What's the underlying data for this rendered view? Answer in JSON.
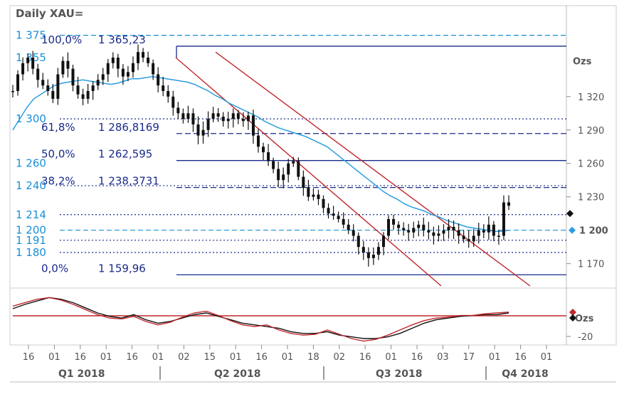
{
  "title": "Daily XAU=",
  "chart_data": {
    "type": "line",
    "symbol": "XAU=",
    "ylim": [
      1150,
      1385
    ],
    "price_ticks": [
      "1 320",
      "1 290",
      "1 260",
      "1 230",
      "1 170"
    ],
    "price_unit": "Ozs",
    "last_price_label": "1 200",
    "levels": [
      {
        "label": "1 375",
        "value": 1375,
        "style": "dashed",
        "color": "#1a8fd6"
      },
      {
        "label": "1 355",
        "value": 1355,
        "style": "none",
        "color": "#1a8fd6"
      },
      {
        "label": "1 300",
        "value": 1300,
        "style": "dotted",
        "color": "#1a2a8a"
      },
      {
        "label": "1 260",
        "value": 1260,
        "style": "none",
        "color": "#1a8fd6"
      },
      {
        "label": "1 240",
        "value": 1240,
        "style": "dotted",
        "color": "#1a2a8a"
      },
      {
        "label": "1 214",
        "value": 1214,
        "style": "dotted",
        "color": "#1a2a8a"
      },
      {
        "label": "1 200",
        "value": 1200,
        "style": "dashed",
        "color": "#1a8fd6"
      },
      {
        "label": "1 191",
        "value": 1191,
        "style": "dotted",
        "color": "#1a2a8a"
      },
      {
        "label": "1 180",
        "value": 1180,
        "style": "dotted",
        "color": "#1a2a8a"
      }
    ],
    "fibonacci": [
      {
        "pct": "100,0%",
        "value_label": "1 365,23",
        "value": 1365.23,
        "style": "solid"
      },
      {
        "pct": "61,8%",
        "value_label": "1 286,8169",
        "value": 1286.8169,
        "style": "dashed"
      },
      {
        "pct": "50,0%",
        "value_label": "1 262,595",
        "value": 1262.595,
        "style": "solid"
      },
      {
        "pct": "38,2%",
        "value_label": "1 238,3731",
        "value": 1238.3731,
        "style": "dashed"
      },
      {
        "pct": "0,0%",
        "value_label": "1 159,96",
        "value": 1159.96,
        "style": "solid"
      }
    ],
    "price_series": [
      1325,
      1340,
      1350,
      1355,
      1345,
      1335,
      1330,
      1325,
      1318,
      1340,
      1352,
      1345,
      1330,
      1322,
      1318,
      1325,
      1330,
      1335,
      1340,
      1350,
      1355,
      1345,
      1338,
      1342,
      1350,
      1360,
      1355,
      1350,
      1340,
      1330,
      1325,
      1320,
      1310,
      1305,
      1300,
      1305,
      1295,
      1285,
      1290,
      1300,
      1305,
      1302,
      1298,
      1300,
      1305,
      1300,
      1298,
      1303,
      1285,
      1275,
      1270,
      1262,
      1255,
      1245,
      1250,
      1260,
      1262,
      1248,
      1238,
      1230,
      1232,
      1228,
      1220,
      1215,
      1213,
      1210,
      1205,
      1200,
      1195,
      1185,
      1180,
      1175,
      1178,
      1185,
      1195,
      1210,
      1205,
      1202,
      1200,
      1198,
      1202,
      1205,
      1200,
      1198,
      1195,
      1197,
      1200,
      1203,
      1200,
      1195,
      1192,
      1190,
      1195,
      1200,
      1198,
      1205,
      1195,
      1195,
      1225,
      1222
    ],
    "ma_series": [
      1290,
      1300,
      1310,
      1318,
      1322,
      1326,
      1330,
      1332,
      1333,
      1334,
      1335,
      1334,
      1333,
      1332,
      1331,
      1332,
      1334,
      1336,
      1336,
      1337,
      1338,
      1337,
      1336,
      1335,
      1334,
      1333,
      1331,
      1328,
      1325,
      1321,
      1318,
      1314,
      1311,
      1308,
      1305,
      1302,
      1298,
      1295,
      1292,
      1290,
      1288,
      1286,
      1284,
      1281,
      1278,
      1275,
      1270,
      1265,
      1260,
      1255,
      1250,
      1245,
      1240,
      1235,
      1231,
      1228,
      1224,
      1221,
      1219,
      1217,
      1214,
      1212,
      1209,
      1207,
      1205,
      1203,
      1202,
      1201,
      1200,
      1199,
      1199,
      1200
    ],
    "channel": [
      {
        "from_x": 247,
        "from_price": 1355,
        "to_x": 620,
        "to_price": 1150
      },
      {
        "from_x": 303,
        "from_price": 1360,
        "to_x": 745,
        "to_price": 1150
      }
    ],
    "oscillator": {
      "tick_label": "-20",
      "unit_label": "Ozs",
      "black_series": [
        5,
        10,
        14,
        18,
        16,
        12,
        6,
        0,
        -4,
        -6,
        -2,
        -8,
        -12,
        -10,
        -6,
        -2,
        0,
        -4,
        -8,
        -12,
        -14,
        -16,
        -18,
        -22,
        -24,
        -24,
        -22,
        -26,
        -28,
        -30,
        -30,
        -28,
        -24,
        -18,
        -12,
        -8,
        -6,
        -4,
        -3,
        -2,
        -2,
        0
      ],
      "red_series": [
        8,
        12,
        16,
        18,
        15,
        10,
        4,
        -2,
        -6,
        -7,
        -4,
        -10,
        -14,
        -11,
        -5,
        0,
        2,
        -3,
        -9,
        -14,
        -16,
        -14,
        -20,
        -24,
        -26,
        -25,
        -20,
        -25,
        -30,
        -33,
        -31,
        -26,
        -20,
        -14,
        -9,
        -6,
        -5,
        -3,
        -3,
        -1,
        0,
        1
      ]
    },
    "x_day_ticks": [
      "16",
      "01",
      "16",
      "01",
      "16",
      "01",
      "02",
      "15",
      "01",
      "16",
      "01",
      "18",
      "02",
      "16",
      "01",
      "16",
      "03",
      "17",
      "01",
      "16",
      "01"
    ],
    "quarters": [
      "Q1 2018",
      "Q2 2018",
      "Q3 2018",
      "Q4 2018"
    ]
  }
}
